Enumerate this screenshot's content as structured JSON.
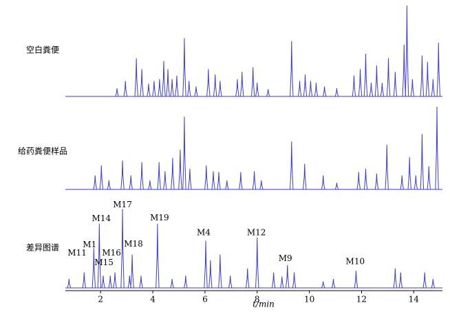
{
  "chart_data": [
    {
      "type": "chromatogram",
      "label": "空白粪便",
      "color": "#3a3adf",
      "xlim": [
        0.65,
        15.1
      ],
      "ylim": [
        0,
        100
      ],
      "x": [
        2.63,
        2.95,
        3.37,
        3.58,
        3.84,
        4.05,
        4.26,
        4.42,
        4.58,
        4.74,
        4.92,
        5.21,
        5.39,
        5.66,
        6.13,
        6.39,
        6.58,
        7.24,
        7.42,
        7.84,
        8.0,
        8.42,
        9.32,
        9.63,
        9.84,
        10.05,
        10.26,
        10.58,
        11.05,
        11.71,
        11.95,
        12.16,
        12.37,
        12.58,
        12.79,
        13.03,
        13.29,
        13.63,
        13.74,
        13.95,
        14.32,
        14.53,
        14.74,
        14.95
      ],
      "values": [
        9,
        17,
        42,
        30,
        14,
        17,
        19,
        39,
        30,
        19,
        23,
        64,
        17,
        11,
        30,
        24,
        17,
        19,
        27,
        32,
        15,
        8,
        61,
        17,
        24,
        17,
        15,
        11,
        9,
        23,
        30,
        47,
        15,
        34,
        15,
        42,
        27,
        57,
        100,
        19,
        45,
        38,
        19,
        59
      ]
    },
    {
      "type": "chromatogram",
      "label": "给药粪便样品",
      "color": "#3a3adf",
      "xlim": [
        0.65,
        15.1
      ],
      "ylim": [
        0,
        100
      ],
      "x": [
        1.79,
        2.03,
        2.32,
        2.84,
        3.16,
        3.58,
        3.89,
        4.24,
        4.47,
        4.76,
        5.05,
        5.21,
        5.42,
        6.05,
        6.32,
        6.53,
        6.84,
        7.37,
        7.89,
        8.16,
        9.32,
        9.82,
        10.53,
        11.05,
        11.89,
        12.16,
        12.58,
        12.97,
        13.55,
        13.84,
        14.08,
        14.32,
        14.58,
        14.89
      ],
      "values": [
        17,
        29,
        11,
        35,
        17,
        33,
        11,
        33,
        22,
        38,
        48,
        88,
        25,
        29,
        22,
        21,
        11,
        21,
        22,
        11,
        58,
        31,
        17,
        8,
        21,
        25,
        19,
        54,
        17,
        39,
        17,
        67,
        28,
        100
      ]
    },
    {
      "type": "chromatogram",
      "label": "差异图谱",
      "color": "#3a3adf",
      "xlim": [
        0.65,
        15.1
      ],
      "ylim": [
        0,
        100
      ],
      "xticks": [
        2,
        4,
        6,
        8,
        10,
        12,
        14
      ],
      "x_label": "t/min",
      "x": [
        0.79,
        1.37,
        1.74,
        1.95,
        2.1,
        2.37,
        2.55,
        2.84,
        3.11,
        3.21,
        3.55,
        4.18,
        4.74,
        5.26,
        6.03,
        6.21,
        6.58,
        6.97,
        7.63,
        8.0,
        8.63,
        8.95,
        9.16,
        9.42,
        10.53,
        10.92,
        11.79,
        13.29,
        13.5,
        14.42,
        14.74
      ],
      "values": [
        11,
        19,
        49,
        79,
        15,
        15,
        19,
        97,
        15,
        41,
        15,
        79,
        11,
        15,
        58,
        34,
        41,
        15,
        24,
        62,
        19,
        14,
        28,
        19,
        8,
        11,
        21,
        24,
        19,
        19,
        11
      ],
      "annotations": [
        {
          "text": "M11",
          "x": 1.1,
          "y": 43
        },
        {
          "text": "M1",
          "x": 1.58,
          "y": 53
        },
        {
          "text": "M14",
          "x": 2.03,
          "y": 85
        },
        {
          "text": "M17",
          "x": 2.84,
          "y": 102
        },
        {
          "text": "M19",
          "x": 4.26,
          "y": 86
        },
        {
          "text": "M18",
          "x": 3.26,
          "y": 54
        },
        {
          "text": "M16",
          "x": 2.42,
          "y": 43
        },
        {
          "text": "M15",
          "x": 2.13,
          "y": 31
        },
        {
          "text": "M4",
          "x": 5.95,
          "y": 68
        },
        {
          "text": "M12",
          "x": 7.97,
          "y": 68
        },
        {
          "text": "M9",
          "x": 9.08,
          "y": 36
        },
        {
          "text": "M10",
          "x": 11.76,
          "y": 32
        }
      ]
    }
  ]
}
